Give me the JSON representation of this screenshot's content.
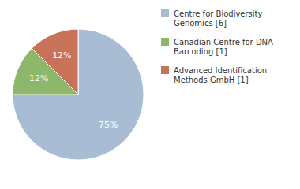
{
  "chart_data": {
    "type": "pie",
    "categories": [
      "Centre for Biodiversity\nGenomics [6]",
      "Canadian Centre for DNA\nBarcoding [1]",
      "Advanced Identification\nMethods GmbH [1]"
    ],
    "values": [
      75,
      12.5,
      12.5
    ],
    "value_labels": [
      "75%",
      "12%",
      "12%"
    ],
    "colors": [
      "#a8bdd4",
      "#8db76a",
      "#c8725a"
    ],
    "data_labels": true,
    "legend": "right"
  }
}
